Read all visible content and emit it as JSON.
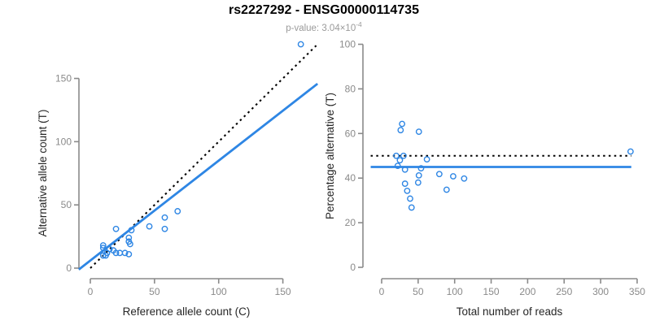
{
  "header": {
    "title": "rs2227292 - ENSG00000114735",
    "pvalue_prefix": "p-value: 3.04×10",
    "pvalue_exponent": "-4"
  },
  "colors": {
    "accent_blue": "#2e86e4",
    "reference_black": "#000000",
    "axis_gray": "#8a8a8a",
    "tick_label_gray": "#8a8a8a",
    "axis_title_color": "#262626",
    "subtitle_gray": "#9a9a9a",
    "background": "#ffffff"
  },
  "chart_data": [
    {
      "type": "scatter",
      "panel": "left",
      "xlabel": "Reference allele count (C)",
      "ylabel": "Alternative allele count (T)",
      "xticks": [
        0,
        50,
        100,
        150
      ],
      "yticks": [
        0,
        50,
        100,
        150
      ],
      "xlim": [
        -9,
        178
      ],
      "ylim": [
        -8,
        183
      ],
      "grid": false,
      "legend": "none",
      "points": [
        [
          10,
          10
        ],
        [
          10,
          16
        ],
        [
          10,
          18
        ],
        [
          12,
          10
        ],
        [
          13,
          12
        ],
        [
          15,
          15
        ],
        [
          18,
          14
        ],
        [
          20,
          12
        ],
        [
          20,
          31
        ],
        [
          23,
          12
        ],
        [
          27,
          12
        ],
        [
          30,
          11
        ],
        [
          30,
          21
        ],
        [
          30,
          24
        ],
        [
          31,
          19
        ],
        [
          32,
          30
        ],
        [
          46,
          33
        ],
        [
          58,
          31
        ],
        [
          58,
          40
        ],
        [
          68,
          45
        ],
        [
          164,
          177
        ]
      ],
      "lines": [
        {
          "name": "identity-line",
          "label": "y = x (50% expectation)",
          "style": "dotted",
          "color": "#000000",
          "from": [
            0,
            0
          ],
          "to": [
            176,
            176
          ]
        },
        {
          "name": "fit-line",
          "label": "fitted allelic ratio",
          "style": "solid",
          "color": "#2e86e4",
          "from": [
            -9,
            -1.1
          ],
          "to": [
            177,
            145.8
          ]
        }
      ]
    },
    {
      "type": "scatter",
      "panel": "right",
      "xlabel": "Total number of reads",
      "ylabel": "Percentage alternative (T)",
      "xticks": [
        0,
        50,
        100,
        150,
        200,
        250,
        300,
        350
      ],
      "yticks": [
        0,
        20,
        40,
        60,
        80,
        100
      ],
      "xlim": [
        -15,
        357
      ],
      "ylim": [
        0,
        100
      ],
      "grid": false,
      "legend": "none",
      "points": [
        [
          20,
          50
        ],
        [
          26,
          61.5
        ],
        [
          28,
          64.3
        ],
        [
          22,
          45.5
        ],
        [
          25,
          48
        ],
        [
          30,
          50
        ],
        [
          32,
          43.8
        ],
        [
          32,
          37.5
        ],
        [
          51,
          60.8
        ],
        [
          35,
          34.3
        ],
        [
          39,
          30.8
        ],
        [
          41,
          26.8
        ],
        [
          51,
          41.2
        ],
        [
          54,
          44.4
        ],
        [
          50,
          38
        ],
        [
          62,
          48.4
        ],
        [
          79,
          41.8
        ],
        [
          89,
          34.8
        ],
        [
          98,
          40.8
        ],
        [
          113,
          39.8
        ],
        [
          341,
          51.9
        ]
      ],
      "lines": [
        {
          "name": "fifty-percent-line",
          "label": "50% expectation",
          "style": "dotted",
          "color": "#000000",
          "from": [
            -15,
            50
          ],
          "to": [
            342,
            50
          ]
        },
        {
          "name": "fit-line",
          "label": "mean alternative percentage",
          "style": "solid",
          "color": "#2e86e4",
          "from": [
            -15,
            45
          ],
          "to": [
            342,
            45
          ]
        }
      ]
    }
  ]
}
